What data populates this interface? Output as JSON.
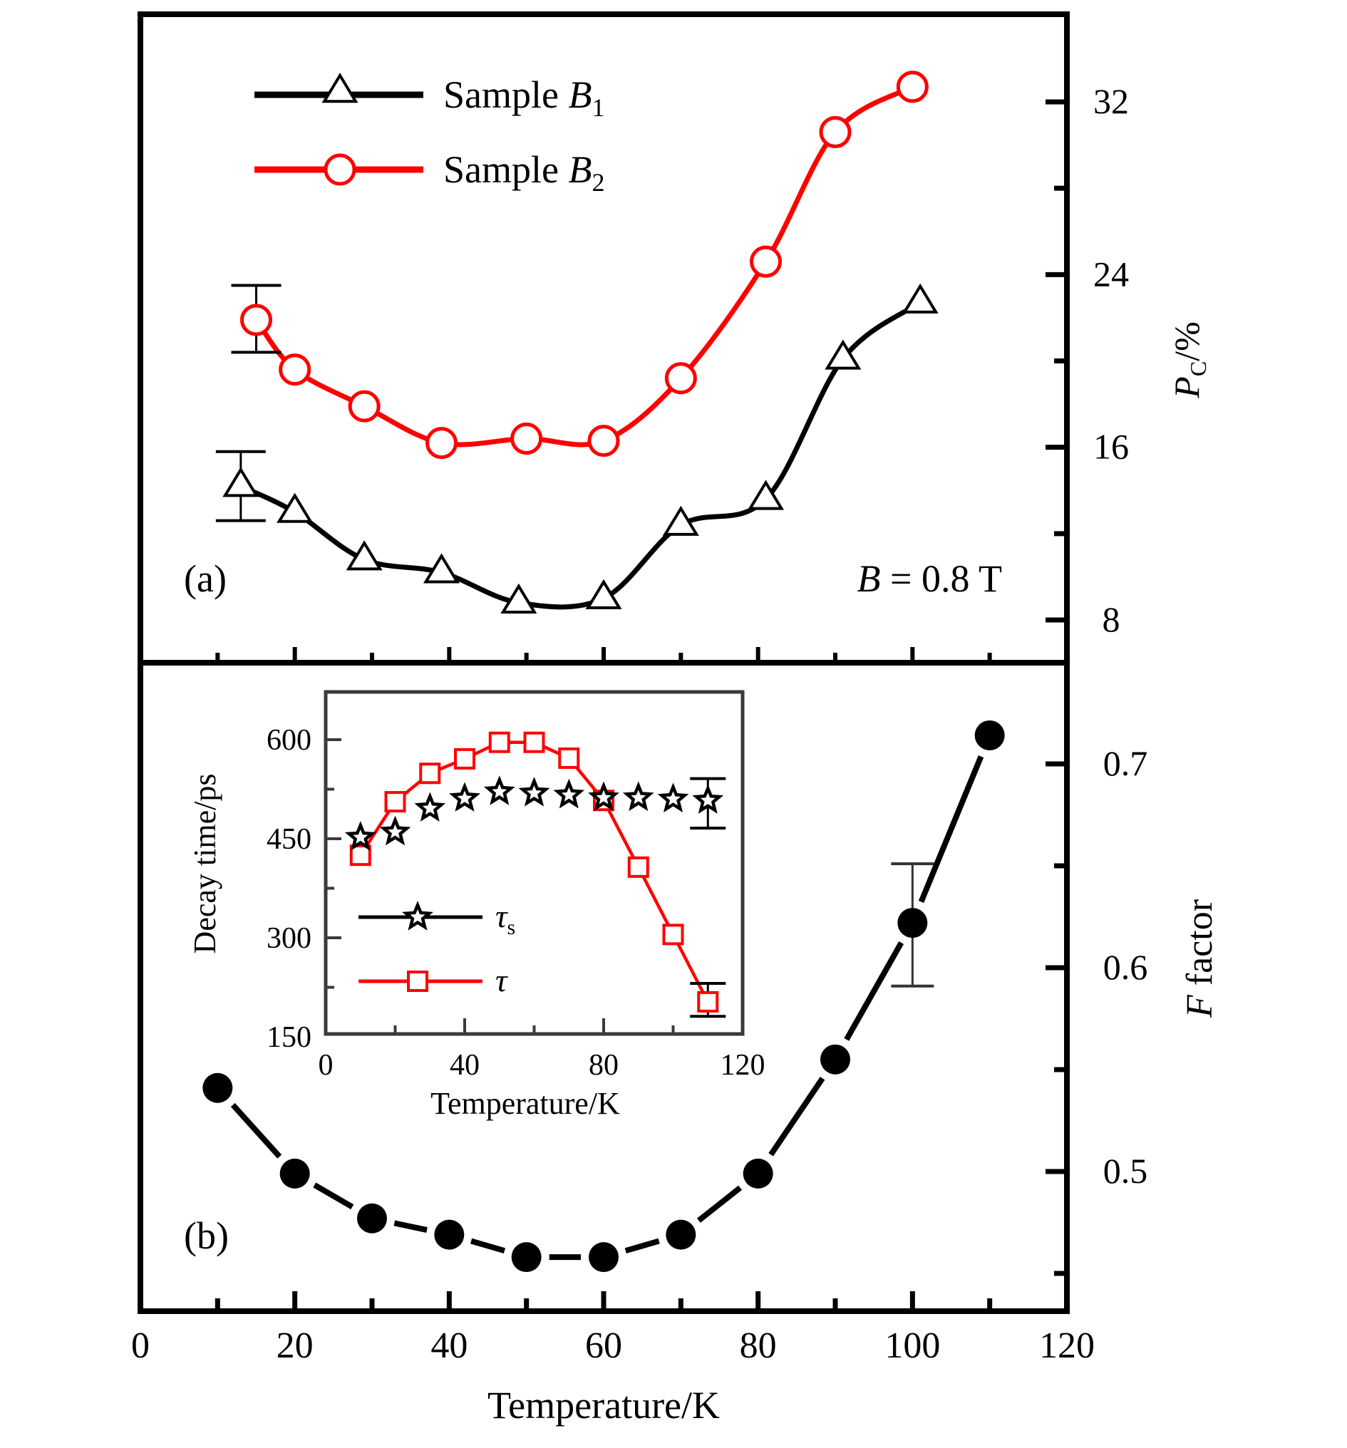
{
  "chart_data": [
    {
      "id": "panel-a",
      "type": "line",
      "panel_label": "(a)",
      "annotation": "B = 0.8 T",
      "xlabel": "",
      "ylabel": "P_C/%",
      "ylabel_main": "P",
      "ylabel_sub": "C",
      "ylabel_rest": "/%",
      "x_range": [
        0,
        120
      ],
      "ylim": [
        6,
        34
      ],
      "y_axis_side": "right",
      "yticks": [
        8,
        16,
        24,
        32
      ],
      "yticks_minor": [
        12,
        20,
        28
      ],
      "xticks_minor_only": [
        10,
        20,
        30,
        40,
        50,
        60,
        70,
        80,
        90,
        100,
        110
      ],
      "legend": {
        "placement": "top-left"
      },
      "series": [
        {
          "name": "Sample B1",
          "legend_text": "Sample ",
          "legend_var": "B",
          "legend_sub": "1",
          "color": "#000000",
          "marker": "open-triangle",
          "x": [
            13,
            20,
            29,
            39,
            49,
            60,
            70,
            81,
            91,
            101
          ],
          "y": [
            14.2,
            13.0,
            10.8,
            10.2,
            8.8,
            9.0,
            12.4,
            13.6,
            20.1,
            22.7
          ],
          "error_bars": [
            {
              "x": 13,
              "low": 12.6,
              "high": 15.8
            }
          ]
        },
        {
          "name": "Sample B2",
          "legend_text": "Sample ",
          "legend_var": "B",
          "legend_sub": "2",
          "color": "#ff0000",
          "marker": "open-circle",
          "x": [
            15,
            20,
            29,
            39,
            50,
            60,
            70,
            81,
            90,
            100
          ],
          "y": [
            21.9,
            19.6,
            17.9,
            16.2,
            16.4,
            16.3,
            19.2,
            24.6,
            30.6,
            32.7
          ],
          "error_bars": [
            {
              "x": 15,
              "low": 20.4,
              "high": 23.5
            }
          ]
        }
      ]
    },
    {
      "id": "panel-b",
      "type": "line",
      "panel_label": "(b)",
      "xlabel": "Temperature/K",
      "ylabel": "F factor",
      "ylabel_var": "F",
      "ylabel_rest": " factor",
      "xlim": [
        0,
        120
      ],
      "xticks": [
        0,
        20,
        40,
        60,
        80,
        100,
        120
      ],
      "xticks_minor": [
        10,
        30,
        50,
        70,
        90,
        110
      ],
      "ylim": [
        0.43,
        0.75
      ],
      "y_axis_side": "right",
      "yticks": [
        0.5,
        0.6,
        0.7
      ],
      "ytick_labels": [
        "0.5",
        "0.6",
        "0.7"
      ],
      "yticks_minor": [
        0.45,
        0.55,
        0.65
      ],
      "series": [
        {
          "name": "F factor",
          "color": "#000000",
          "marker": "filled-circle",
          "x": [
            10,
            20,
            30,
            40,
            50,
            60,
            70,
            80,
            90,
            100,
            110
          ],
          "y": [
            0.541,
            0.499,
            0.477,
            0.469,
            0.458,
            0.458,
            0.469,
            0.499,
            0.555,
            0.622,
            0.714
          ],
          "error_bars": [
            {
              "x": 100,
              "low": 0.591,
              "high": 0.651
            }
          ]
        }
      ]
    },
    {
      "id": "inset",
      "type": "line",
      "xlabel": "Temperature/K",
      "ylabel": "Decay time/ps",
      "xlim": [
        0,
        120
      ],
      "xticks": [
        0,
        40,
        80,
        120
      ],
      "xticks_minor": [
        20,
        60,
        100
      ],
      "ylim": [
        150,
        672
      ],
      "yticks": [
        150,
        300,
        450,
        600
      ],
      "yticks_minor": [
        225,
        375,
        525
      ],
      "legend": {
        "placement": "bottom-left"
      },
      "series": [
        {
          "name": "τs",
          "legend_var": "τ",
          "legend_sub": "s",
          "color": "#000000",
          "marker": "open-star",
          "line": false,
          "x": [
            10,
            20,
            30,
            40,
            50,
            60,
            70,
            80,
            90,
            100,
            110
          ],
          "y": [
            452,
            460,
            496,
            511,
            521,
            519,
            516,
            512,
            512,
            510,
            508
          ],
          "error_bars": [
            {
              "x": 110,
              "low": 466,
              "high": 541
            }
          ]
        },
        {
          "name": "τ",
          "legend_var": "τ",
          "legend_sub": "",
          "color": "#ff0000",
          "marker": "open-square",
          "line": true,
          "x": [
            10,
            20,
            30,
            40,
            50,
            60,
            70,
            80,
            90,
            100,
            110
          ],
          "y": [
            425,
            506,
            549,
            571,
            596,
            596,
            572,
            508,
            407,
            305,
            203
          ],
          "error_bars": [
            {
              "x": 110,
              "low": 181,
              "high": 231
            }
          ]
        }
      ]
    }
  ]
}
